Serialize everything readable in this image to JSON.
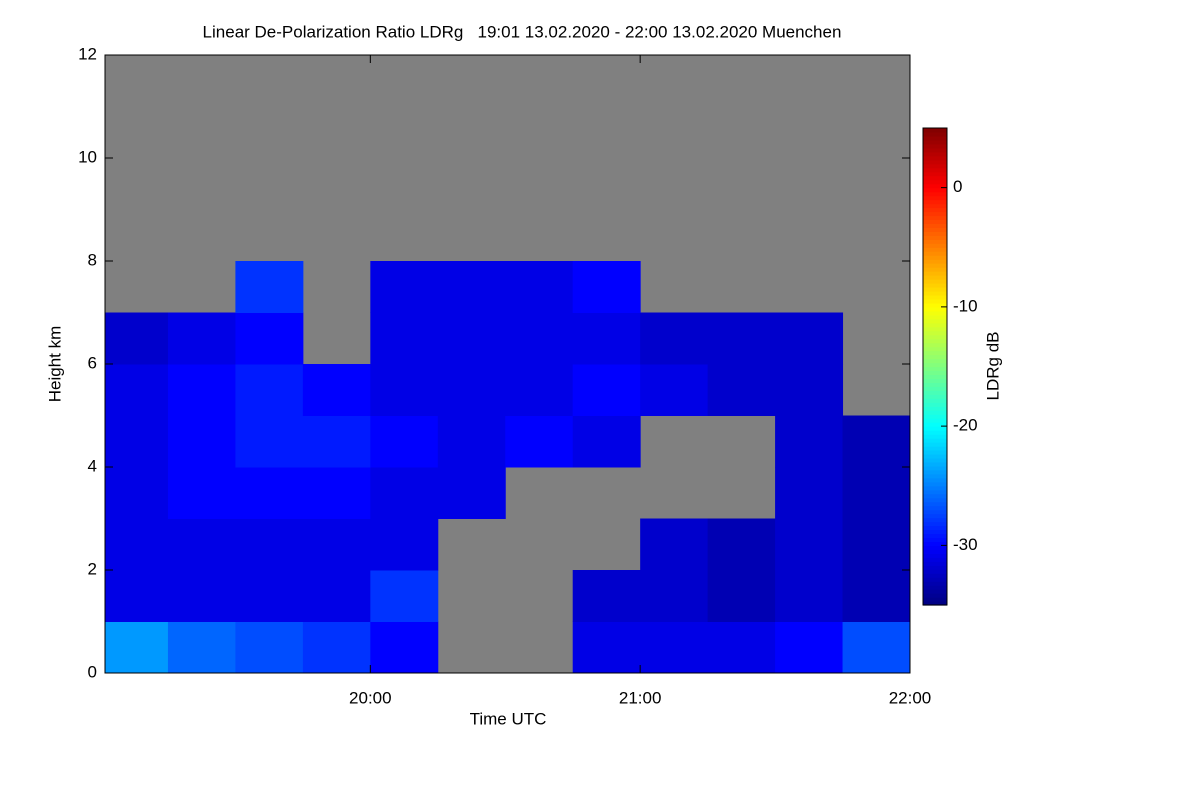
{
  "chart_data": {
    "type": "heatmap",
    "title": "Linear De-Polarization Ratio LDRg   19:01 13.02.2020 - 22:00 13.02.2020 Muenchen",
    "xlabel": "Time UTC",
    "ylabel": "Height km",
    "colorbar_label": "LDRg dB",
    "xlim": [
      19.0167,
      22
    ],
    "xticks": [
      {
        "value": 20,
        "label": "20:00"
      },
      {
        "value": 21,
        "label": "21:00"
      },
      {
        "value": 22,
        "label": "22:00"
      }
    ],
    "ylim": [
      0,
      12
    ],
    "yticks": [
      0,
      2,
      4,
      6,
      8,
      10,
      12
    ],
    "clim": [
      -35,
      5
    ],
    "colorbar_ticks": [
      0,
      -10,
      -20,
      -30
    ],
    "colormap": "jet",
    "missing_color": "#808080",
    "x_edges": [
      19,
      19.25,
      19.5,
      19.75,
      20,
      20.25,
      20.5,
      20.75,
      21,
      21.25,
      21.5,
      21.75,
      22
    ],
    "y_edges": [
      0,
      1,
      2,
      3,
      4,
      5,
      6,
      7,
      8,
      9,
      10,
      11,
      12
    ],
    "z": [
      [
        -24,
        -26,
        -27,
        -28,
        -30,
        null,
        null,
        -31,
        -31,
        -31,
        -30,
        -27
      ],
      [
        -31,
        -31,
        -31,
        -31,
        -28,
        null,
        null,
        -32,
        -32,
        -33,
        -32,
        -33
      ],
      [
        -31,
        -31,
        -31,
        -31,
        -31,
        null,
        null,
        null,
        -32,
        -33,
        -32,
        -33
      ],
      [
        -31,
        -30,
        -30,
        -30,
        -31,
        -31,
        null,
        null,
        null,
        null,
        -32,
        -33
      ],
      [
        -31,
        -30,
        -29,
        -29,
        -30,
        -31,
        -30,
        -31,
        null,
        null,
        -32,
        -33
      ],
      [
        -31,
        -30,
        -29,
        -30,
        -31,
        -31,
        -31,
        -30,
        -31,
        -32,
        -32,
        null
      ],
      [
        -32,
        -31,
        -30,
        null,
        -31,
        -31,
        -31,
        -31,
        -32,
        -32,
        -32,
        null
      ],
      [
        null,
        null,
        -28,
        null,
        -31,
        -31,
        -31,
        -30,
        null,
        null,
        null,
        null
      ],
      [
        null,
        null,
        null,
        null,
        null,
        null,
        null,
        null,
        null,
        null,
        null,
        null
      ],
      [
        null,
        null,
        null,
        null,
        null,
        null,
        null,
        null,
        null,
        null,
        null,
        null
      ],
      [
        null,
        null,
        null,
        null,
        null,
        null,
        null,
        null,
        null,
        null,
        null,
        null
      ],
      [
        null,
        null,
        null,
        null,
        null,
        null,
        null,
        null,
        null,
        null,
        null,
        null
      ]
    ]
  }
}
